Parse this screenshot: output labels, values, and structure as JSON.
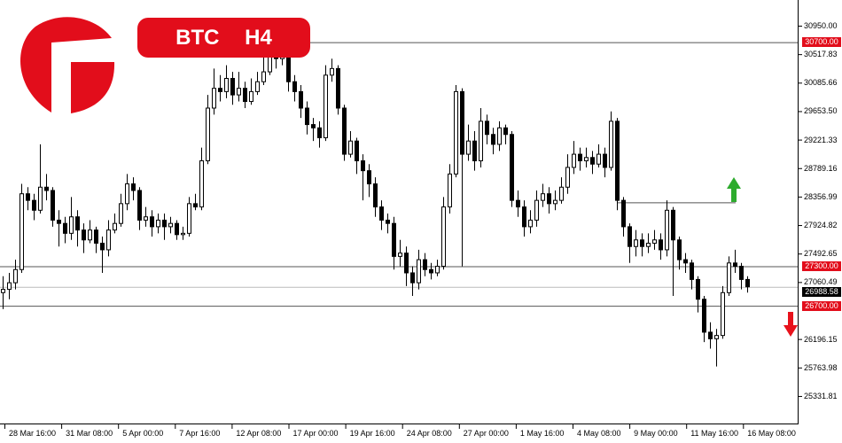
{
  "header": {
    "symbol": "BTC",
    "timeframe": "H4"
  },
  "logo": {
    "letter": "G",
    "color": "#e20d1b"
  },
  "colors": {
    "accent": "#e20d1b",
    "up_arrow": "#2eab2e",
    "down_arrow": "#e8121c",
    "current_price_bg": "#000000"
  },
  "price_axis": {
    "ticks": [
      "30950.00",
      "30517.83",
      "30085.66",
      "29653.50",
      "29221.33",
      "28789.16",
      "28356.99",
      "27924.82",
      "27492.65",
      "27060.49",
      "26196.15",
      "25763.98",
      "25331.81"
    ],
    "levels": [
      {
        "value": 30700,
        "label": "30700.00"
      },
      {
        "value": 27300,
        "label": "27300.00"
      },
      {
        "value": 26700,
        "label": "26700.00"
      }
    ],
    "current_price": {
      "value": 26988.58,
      "label": "26988.58"
    },
    "short_line": 28270
  },
  "time_axis": {
    "labels": [
      "28 Mar 16:00",
      "31 Mar 08:00",
      "5 Apr 00:00",
      "7 Apr 16:00",
      "12 Apr 08:00",
      "17 Apr 00:00",
      "19 Apr 16:00",
      "24 Apr 08:00",
      "27 Apr 00:00",
      "1 May 16:00",
      "4 May 08:00",
      "9 May 00:00",
      "11 May 16:00",
      "16 May 08:00"
    ]
  },
  "annotations": {
    "up_arrow": "arrow-up-icon",
    "down_arrow": "arrow-down-icon"
  },
  "chart_data": {
    "type": "candlestick",
    "ylim": [
      25050,
      31150
    ],
    "candles": [
      [
        26900,
        27150,
        26650,
        26950
      ],
      [
        26950,
        27200,
        26800,
        27050
      ],
      [
        27050,
        27400,
        26950,
        27250
      ],
      [
        27250,
        28550,
        27200,
        28400
      ],
      [
        28400,
        28500,
        28150,
        28300
      ],
      [
        28300,
        28400,
        28000,
        28150
      ],
      [
        28150,
        29150,
        28100,
        28500
      ],
      [
        28500,
        28700,
        28300,
        28450
      ],
      [
        28450,
        28500,
        27900,
        28000
      ],
      [
        28000,
        28150,
        27600,
        27950
      ],
      [
        27950,
        28050,
        27650,
        27800
      ],
      [
        27800,
        28350,
        27700,
        28050
      ],
      [
        28050,
        28150,
        27600,
        27850
      ],
      [
        27850,
        27950,
        27500,
        27700
      ],
      [
        27700,
        28000,
        27650,
        27850
      ],
      [
        27850,
        27900,
        27500,
        27650
      ],
      [
        27650,
        27750,
        27200,
        27550
      ],
      [
        27550,
        28000,
        27450,
        27850
      ],
      [
        27850,
        28100,
        27800,
        27950
      ],
      [
        27950,
        28400,
        27900,
        28250
      ],
      [
        28250,
        28700,
        28150,
        28550
      ],
      [
        28550,
        28650,
        28300,
        28450
      ],
      [
        28450,
        28500,
        27850,
        28000
      ],
      [
        28000,
        28200,
        27900,
        28050
      ],
      [
        28050,
        28150,
        27750,
        27900
      ],
      [
        27900,
        28100,
        27800,
        28000
      ],
      [
        28000,
        28100,
        27700,
        27900
      ],
      [
        27900,
        28050,
        27800,
        27950
      ],
      [
        27950,
        28000,
        27700,
        27780
      ],
      [
        27780,
        27900,
        27700,
        27800
      ],
      [
        27800,
        28350,
        27750,
        28250
      ],
      [
        28250,
        28400,
        28150,
        28200
      ],
      [
        28200,
        29100,
        28150,
        28900
      ],
      [
        28900,
        29900,
        28850,
        29700
      ],
      [
        29700,
        30300,
        29600,
        30000
      ],
      [
        30000,
        30200,
        29800,
        29950
      ],
      [
        29950,
        30350,
        29850,
        30150
      ],
      [
        30150,
        30250,
        29750,
        29900
      ],
      [
        29900,
        30250,
        29800,
        30000
      ],
      [
        30000,
        30100,
        29700,
        29800
      ],
      [
        29800,
        30150,
        29750,
        29950
      ],
      [
        29950,
        30250,
        29900,
        30100
      ],
      [
        30100,
        30500,
        30050,
        30250
      ],
      [
        30250,
        30700,
        30200,
        30500
      ],
      [
        30500,
        30650,
        30300,
        30450
      ],
      [
        30450,
        30700,
        30350,
        30550
      ],
      [
        30550,
        30600,
        29950,
        30100
      ],
      [
        30100,
        30200,
        29800,
        29950
      ],
      [
        29950,
        30050,
        29550,
        29700
      ],
      [
        29700,
        29800,
        29300,
        29450
      ],
      [
        29450,
        29550,
        29200,
        29400
      ],
      [
        29400,
        29500,
        29100,
        29250
      ],
      [
        29250,
        30350,
        29200,
        30200
      ],
      [
        30200,
        30450,
        30100,
        30300
      ],
      [
        30300,
        30350,
        29600,
        29700
      ],
      [
        29700,
        29750,
        28900,
        29000
      ],
      [
        29000,
        29350,
        28950,
        29200
      ],
      [
        29200,
        29250,
        28700,
        28900
      ],
      [
        28900,
        29000,
        28300,
        28750
      ],
      [
        28750,
        28850,
        28350,
        28550
      ],
      [
        28550,
        28650,
        28050,
        28200
      ],
      [
        28200,
        28300,
        27850,
        28000
      ],
      [
        28000,
        28100,
        27800,
        27950
      ],
      [
        27950,
        28050,
        27250,
        27450
      ],
      [
        27450,
        27700,
        27300,
        27500
      ],
      [
        27500,
        27600,
        27000,
        27200
      ],
      [
        27200,
        27300,
        26850,
        27050
      ],
      [
        27050,
        27550,
        26950,
        27400
      ],
      [
        27400,
        27500,
        27150,
        27250
      ],
      [
        27250,
        27350,
        27100,
        27200
      ],
      [
        27200,
        27400,
        27150,
        27300
      ],
      [
        27300,
        28350,
        27250,
        28200
      ],
      [
        28200,
        28850,
        28100,
        28700
      ],
      [
        28700,
        30050,
        28650,
        29950
      ],
      [
        29950,
        30000,
        27300,
        29000
      ],
      [
        29000,
        29450,
        28900,
        29200
      ],
      [
        29200,
        29350,
        28750,
        28900
      ],
      [
        28900,
        29700,
        28800,
        29500
      ],
      [
        29500,
        29600,
        29150,
        29300
      ],
      [
        29300,
        29400,
        29000,
        29150
      ],
      [
        29150,
        29500,
        29050,
        29400
      ],
      [
        29400,
        29450,
        29150,
        29300
      ],
      [
        29300,
        29350,
        28200,
        28300
      ],
      [
        28300,
        28450,
        28050,
        28200
      ],
      [
        28200,
        28300,
        27750,
        27900
      ],
      [
        27900,
        28150,
        27800,
        28000
      ],
      [
        28000,
        28450,
        27900,
        28300
      ],
      [
        28300,
        28550,
        28200,
        28400
      ],
      [
        28400,
        28500,
        28100,
        28250
      ],
      [
        28250,
        28450,
        28150,
        28300
      ],
      [
        28300,
        28650,
        28250,
        28500
      ],
      [
        28500,
        29000,
        28400,
        28800
      ],
      [
        28800,
        29200,
        28700,
        29000
      ],
      [
        29000,
        29100,
        28750,
        28900
      ],
      [
        28900,
        29100,
        28800,
        28950
      ],
      [
        28950,
        29050,
        28700,
        28850
      ],
      [
        28850,
        29150,
        28800,
        29000
      ],
      [
        29000,
        29100,
        28650,
        28800
      ],
      [
        28800,
        29650,
        28750,
        29500
      ],
      [
        29500,
        29550,
        28150,
        28300
      ],
      [
        28300,
        28350,
        27750,
        27900
      ],
      [
        27900,
        27950,
        27350,
        27600
      ],
      [
        27600,
        27850,
        27450,
        27700
      ],
      [
        27700,
        27800,
        27450,
        27600
      ],
      [
        27600,
        27800,
        27500,
        27650
      ],
      [
        27650,
        27850,
        27550,
        27700
      ],
      [
        27700,
        27800,
        27400,
        27550
      ],
      [
        27550,
        28300,
        27450,
        28150
      ],
      [
        28150,
        28200,
        26850,
        27700
      ],
      [
        27700,
        27750,
        27250,
        27400
      ],
      [
        27400,
        27500,
        27200,
        27350
      ],
      [
        27350,
        27400,
        26950,
        27100
      ],
      [
        27100,
        27150,
        26600,
        26800
      ],
      [
        26800,
        26850,
        26150,
        26300
      ],
      [
        26300,
        26450,
        26050,
        26200
      ],
      [
        26200,
        26350,
        25780,
        26250
      ],
      [
        26250,
        27000,
        26200,
        26900
      ],
      [
        26900,
        27450,
        26850,
        27350
      ],
      [
        27350,
        27550,
        27200,
        27300
      ],
      [
        27300,
        27350,
        26950,
        27100
      ],
      [
        27100,
        27150,
        26900,
        26988.58
      ]
    ]
  }
}
